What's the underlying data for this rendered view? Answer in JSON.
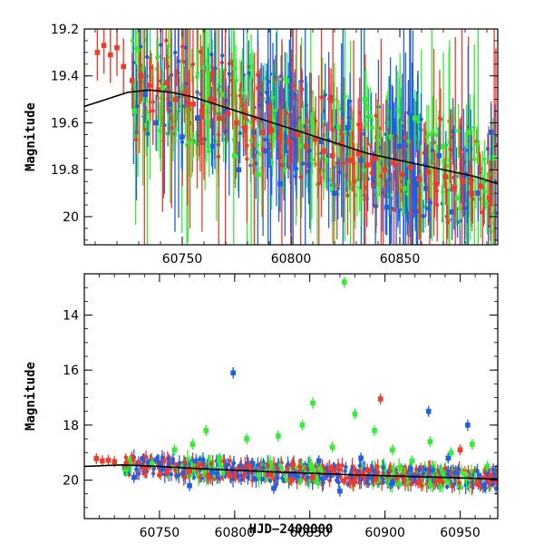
{
  "chart_data": [
    {
      "type": "scatter",
      "title": "",
      "xlabel": "",
      "ylabel": "Magnitude",
      "xlim": [
        60705,
        60895
      ],
      "ylim": [
        20.12,
        19.2
      ],
      "x_ticks": [
        60750,
        60800,
        60850
      ],
      "x_tick_labels": [
        "60750",
        "60800",
        "60850"
      ],
      "y_ticks": [
        19.2,
        19.4,
        19.6,
        19.8,
        20.0
      ],
      "y_tick_labels": [
        "19.2",
        "19.4",
        "19.6",
        "19.8",
        "20"
      ],
      "grid": false,
      "series": [
        {
          "name": "green",
          "color": "#33ee33",
          "x": [
            60728,
            60733,
            60741,
            60747,
            60755,
            60762,
            60768,
            60774,
            60779,
            60785,
            60791,
            60798,
            60804,
            60810,
            60816,
            60822,
            60827,
            60834,
            60840,
            60846,
            60852,
            60857,
            60864,
            60870,
            60876,
            60882,
            60888,
            60893
          ],
          "y": [
            19.55,
            19.5,
            19.45,
            19.58,
            19.52,
            19.6,
            19.48,
            19.74,
            19.6,
            19.82,
            19.66,
            19.42,
            19.7,
            19.58,
            19.76,
            19.62,
            19.86,
            19.5,
            19.74,
            19.66,
            19.88,
            19.58,
            19.8,
            19.7,
            19.92,
            19.64,
            19.84,
            19.75
          ]
        },
        {
          "name": "blue",
          "color": "#1f5fe6",
          "x": [
            60733,
            60738,
            60744,
            60750,
            60757,
            60764,
            60770,
            60776,
            60783,
            60789,
            60795,
            60802,
            60808,
            60814,
            60820,
            60826,
            60832,
            60838,
            60844,
            60850,
            60856,
            60862,
            60868,
            60874,
            60880,
            60886,
            60892
          ],
          "y": [
            19.48,
            19.6,
            19.52,
            19.66,
            19.58,
            19.7,
            19.55,
            19.8,
            19.64,
            19.72,
            19.86,
            19.6,
            19.78,
            19.68,
            19.9,
            19.62,
            19.76,
            19.84,
            19.96,
            19.7,
            19.8,
            19.88,
            19.74,
            19.98,
            19.82,
            19.9,
            19.64
          ]
        },
        {
          "name": "red",
          "color": "#f03a2a",
          "x": [
            60711,
            60714,
            60717,
            60720,
            60723,
            60727,
            60731,
            60735,
            60739,
            60743,
            60747,
            60751,
            60755,
            60759,
            60763,
            60767,
            60771,
            60775,
            60779,
            60783,
            60787,
            60791,
            60795,
            60799,
            60803,
            60807,
            60811,
            60815,
            60819,
            60823,
            60827,
            60831,
            60835,
            60839,
            60843,
            60847,
            60851,
            60855,
            60859,
            60863,
            60867,
            60871,
            60875,
            60879,
            60883,
            60887,
            60891
          ],
          "y": [
            19.3,
            19.27,
            19.31,
            19.28,
            19.36,
            19.42,
            19.4,
            19.44,
            19.46,
            19.43,
            19.5,
            19.48,
            19.52,
            19.55,
            19.5,
            19.58,
            19.56,
            19.6,
            19.62,
            19.58,
            19.64,
            19.63,
            19.66,
            19.68,
            19.65,
            19.7,
            19.67,
            19.72,
            19.74,
            19.69,
            19.76,
            19.73,
            19.78,
            19.75,
            19.8,
            19.77,
            19.82,
            19.79,
            19.84,
            19.81,
            19.86,
            19.83,
            19.88,
            19.85,
            19.9,
            19.87,
            19.92
          ]
        },
        {
          "name": "model",
          "color": "#000000",
          "style": "line",
          "x": [
            60705,
            60715,
            60725,
            60735,
            60745,
            60755,
            60765,
            60775,
            60785,
            60795,
            60805,
            60815,
            60825,
            60835,
            60845,
            60855,
            60865,
            60875,
            60885,
            60895
          ],
          "y": [
            19.53,
            19.5,
            19.47,
            19.46,
            19.47,
            19.49,
            19.52,
            19.55,
            19.58,
            19.61,
            19.64,
            19.67,
            19.7,
            19.73,
            19.75,
            19.77,
            19.79,
            19.81,
            19.83,
            19.86
          ]
        }
      ]
    },
    {
      "type": "scatter",
      "title": "",
      "xlabel": "HJD−2400000",
      "ylabel": "Magnitude",
      "xlim": [
        60700,
        60975
      ],
      "ylim": [
        21.4,
        12.5
      ],
      "x_ticks": [
        60750,
        60800,
        60850,
        60900,
        60950
      ],
      "x_tick_labels": [
        "60750",
        "60800",
        "60850",
        "60900",
        "60950"
      ],
      "y_ticks": [
        14,
        16,
        18,
        20
      ],
      "y_tick_labels": [
        "14",
        "16",
        "18",
        "20"
      ],
      "grid": false,
      "series": [
        {
          "name": "green",
          "color": "#33ee33",
          "x": [
            60728,
            60745,
            60760,
            60772,
            60781,
            60790,
            60808,
            60816,
            60829,
            60845,
            60852,
            60865,
            60873,
            60880,
            60893,
            60905,
            60918,
            60930,
            60944,
            60958,
            60968
          ],
          "y": [
            19.6,
            19.4,
            18.9,
            18.7,
            18.2,
            19.2,
            18.5,
            19.8,
            18.4,
            18.0,
            17.2,
            18.8,
            12.8,
            17.6,
            18.2,
            18.9,
            19.3,
            18.6,
            19.0,
            18.7,
            19.5
          ]
        },
        {
          "name": "blue",
          "color": "#1f5fe6",
          "x": [
            60733,
            60752,
            60770,
            60785,
            60799,
            60812,
            60826,
            60840,
            60856,
            60870,
            60884,
            60892,
            60905,
            60917,
            60929,
            60942,
            60955,
            60966
          ],
          "y": [
            19.9,
            19.6,
            20.2,
            19.7,
            16.1,
            19.4,
            20.3,
            19.8,
            19.3,
            20.4,
            19.2,
            19.9,
            20.1,
            19.6,
            17.5,
            19.2,
            18.0,
            20.2
          ]
        },
        {
          "name": "red",
          "color": "#f03a2a",
          "x": [
            60708,
            60712,
            60716,
            60720,
            60728,
            60740,
            60755,
            60770,
            60783,
            60797,
            60810,
            60824,
            60838,
            60852,
            60866,
            60880,
            60894,
            60897,
            60908,
            60922,
            60936,
            60950,
            60962,
            60970
          ],
          "y": [
            19.22,
            19.3,
            19.28,
            19.33,
            19.4,
            19.55,
            19.7,
            19.65,
            19.9,
            19.85,
            19.5,
            19.8,
            20.0,
            19.9,
            19.7,
            20.05,
            19.95,
            17.05,
            19.9,
            20.1,
            20.0,
            18.9,
            20.15,
            20.0
          ]
        },
        {
          "name": "model",
          "color": "#000000",
          "style": "line",
          "x": [
            60700,
            60725,
            60750,
            60775,
            60800,
            60825,
            60850,
            60875,
            60900,
            60925,
            60950,
            60975
          ],
          "y": [
            19.5,
            19.45,
            19.5,
            19.58,
            19.64,
            19.7,
            19.75,
            19.8,
            19.84,
            19.88,
            19.92,
            19.96
          ]
        }
      ]
    }
  ]
}
